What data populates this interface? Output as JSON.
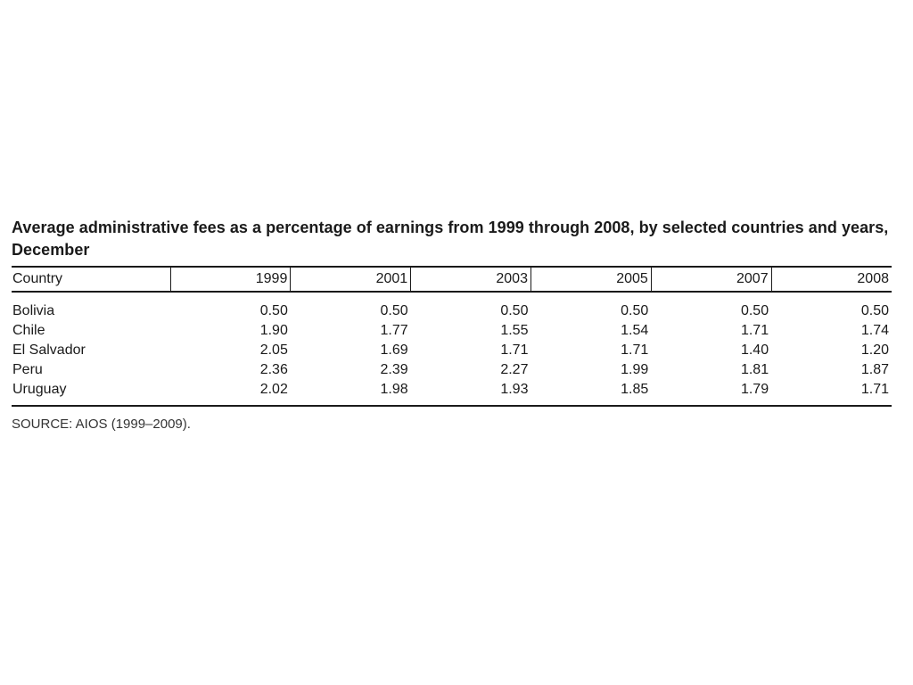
{
  "document": {
    "title": "Average administrative fees as a percentage of earnings from 1999 through 2008, by selected countries and years, December",
    "source": "SOURCE: AIOS (1999–2009)."
  },
  "table": {
    "headers": [
      "Country",
      "1999",
      "2001",
      "2003",
      "2005",
      "2007",
      "2008"
    ],
    "rows": [
      [
        "Bolivia",
        "0.50",
        "0.50",
        "0.50",
        "0.50",
        "0.50",
        "0.50"
      ],
      [
        "Chile",
        "1.90",
        "1.77",
        "1.55",
        "1.54",
        "1.71",
        "1.74"
      ],
      [
        "El Salvador",
        "2.05",
        "1.69",
        "1.71",
        "1.71",
        "1.40",
        "1.20"
      ],
      [
        "Peru",
        "2.36",
        "2.39",
        "2.27",
        "1.99",
        "1.81",
        "1.87"
      ],
      [
        "Uruguay",
        "2.02",
        "1.98",
        "1.93",
        "1.85",
        "1.79",
        "1.71"
      ]
    ]
  }
}
